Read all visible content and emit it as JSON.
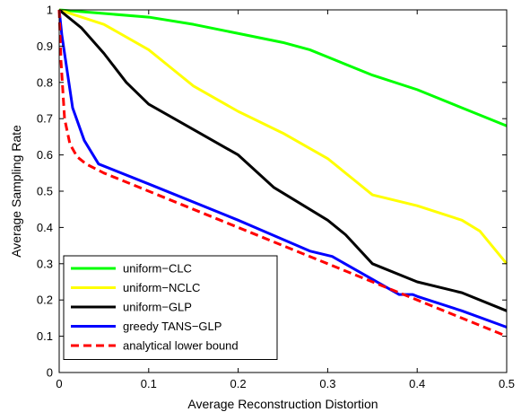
{
  "chart_data": {
    "type": "line",
    "title": "",
    "xlabel": "Average Reconstruction Distortion",
    "ylabel": "Average Sampling Rate",
    "xlim": [
      0,
      0.5
    ],
    "ylim": [
      0,
      1
    ],
    "xticks": [
      "0",
      "0.1",
      "0.2",
      "0.3",
      "0.4",
      "0.5"
    ],
    "yticks": [
      "0",
      "0.1",
      "0.2",
      "0.3",
      "0.4",
      "0.5",
      "0.6",
      "0.7",
      "0.8",
      "0.9",
      "1"
    ],
    "grid": false,
    "legend_position": "bottom-left",
    "series": [
      {
        "name": "uniform−CLC",
        "color": "#00ff00",
        "dash": "solid",
        "x": [
          0,
          0.05,
          0.1,
          0.15,
          0.2,
          0.25,
          0.28,
          0.3,
          0.35,
          0.4,
          0.45,
          0.5
        ],
        "y": [
          1,
          0.99,
          0.98,
          0.96,
          0.935,
          0.91,
          0.89,
          0.87,
          0.82,
          0.78,
          0.73,
          0.68
        ]
      },
      {
        "name": "uniform−NCLC",
        "color": "#ffff00",
        "dash": "solid",
        "x": [
          0,
          0.05,
          0.1,
          0.125,
          0.15,
          0.2,
          0.25,
          0.3,
          0.33,
          0.35,
          0.4,
          0.45,
          0.47,
          0.5
        ],
        "y": [
          1,
          0.96,
          0.89,
          0.84,
          0.79,
          0.72,
          0.66,
          0.59,
          0.53,
          0.49,
          0.46,
          0.42,
          0.39,
          0.3
        ]
      },
      {
        "name": "uniform−GLP",
        "color": "#000000",
        "dash": "solid",
        "x": [
          0,
          0.025,
          0.05,
          0.075,
          0.1,
          0.15,
          0.2,
          0.24,
          0.3,
          0.32,
          0.35,
          0.4,
          0.45,
          0.5
        ],
        "y": [
          1,
          0.95,
          0.88,
          0.8,
          0.74,
          0.67,
          0.6,
          0.51,
          0.42,
          0.38,
          0.3,
          0.25,
          0.22,
          0.17
        ]
      },
      {
        "name": "greedy TANS−GLP",
        "color": "#0000ff",
        "dash": "solid",
        "x": [
          0,
          0.003,
          0.015,
          0.028,
          0.044,
          0.1,
          0.2,
          0.28,
          0.305,
          0.38,
          0.395,
          0.4,
          0.45,
          0.5
        ],
        "y": [
          1,
          0.93,
          0.73,
          0.64,
          0.575,
          0.52,
          0.42,
          0.335,
          0.32,
          0.215,
          0.215,
          0.21,
          0.17,
          0.125
        ]
      },
      {
        "name": "analytical lower bound",
        "color": "#ff0000",
        "dash": "dashed",
        "x": [
          0,
          0.002,
          0.006,
          0.012,
          0.02,
          0.03,
          0.05,
          0.1,
          0.2,
          0.3,
          0.4,
          0.5
        ],
        "y": [
          1,
          0.86,
          0.7,
          0.63,
          0.595,
          0.575,
          0.55,
          0.5,
          0.4,
          0.3,
          0.2,
          0.1
        ]
      }
    ]
  }
}
